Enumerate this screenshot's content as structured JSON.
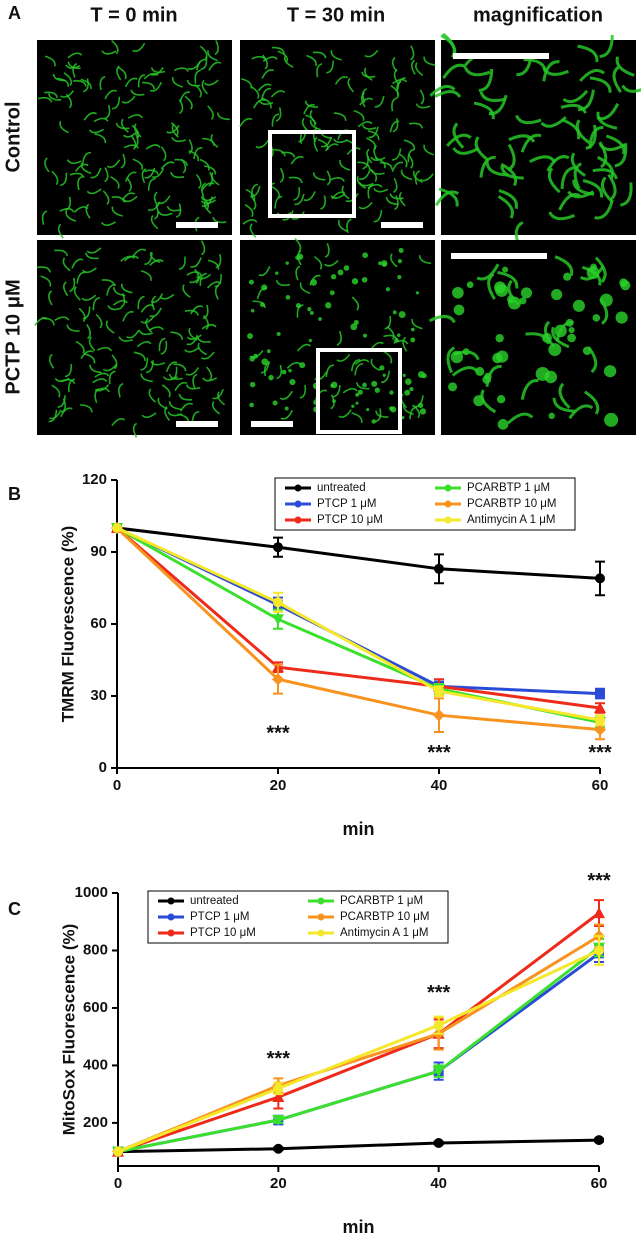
{
  "panel_a": {
    "label": "A",
    "columns": [
      "T = 0  min",
      "T = 30  min",
      "magnification"
    ],
    "rows": [
      "Control",
      "PCTP 10 μM"
    ]
  },
  "chart_data": [
    {
      "type": "line",
      "panel_label": "B",
      "ylabel": "TMRM Fluorescence (%)",
      "xlabel": "min",
      "x": [
        0,
        20,
        40,
        60
      ],
      "xlim": [
        0,
        60
      ],
      "xticks": [
        0,
        20,
        40,
        60
      ],
      "ylim": [
        0,
        120
      ],
      "yticks": [
        0,
        30,
        60,
        90,
        120
      ],
      "legend": "top-right",
      "series": [
        {
          "name": "untreated",
          "color": "#000000",
          "marker": "circle",
          "values": [
            100,
            92,
            83,
            79
          ],
          "errors": [
            0,
            4,
            6,
            7
          ]
        },
        {
          "name": "PTCP 1 μM",
          "color": "#2a4bd7",
          "marker": "square",
          "values": [
            100,
            68,
            34,
            31
          ],
          "errors": [
            0,
            3,
            2,
            2
          ]
        },
        {
          "name": "PTCP 10 μM",
          "color": "#ee2a1b",
          "marker": "triangle",
          "values": [
            100,
            42,
            34,
            25
          ],
          "errors": [
            0,
            2,
            3,
            2
          ]
        },
        {
          "name": "PCARBTP 1 μM",
          "color": "#3be02e",
          "marker": "down",
          "values": [
            100,
            62,
            33,
            19
          ],
          "errors": [
            0,
            4,
            2,
            2
          ]
        },
        {
          "name": "PCARBTP 10 μM",
          "color": "#f7931e",
          "marker": "diamond",
          "values": [
            100,
            37,
            22,
            16
          ],
          "errors": [
            0,
            6,
            7,
            4
          ]
        },
        {
          "name": "Antimycin A 1 μM",
          "color": "#f5e82a",
          "marker": "circle",
          "values": [
            100,
            69,
            32,
            20
          ],
          "errors": [
            0,
            4,
            2,
            2
          ]
        }
      ],
      "annotations": [
        {
          "text": "***",
          "x": 20,
          "y": 14
        },
        {
          "text": "***",
          "x": 40,
          "y": 6
        },
        {
          "text": "***",
          "x": 60,
          "y": 6
        }
      ]
    },
    {
      "type": "line",
      "panel_label": "C",
      "ylabel": "MitoSox Fluorescence (%)",
      "xlabel": "min",
      "x": [
        0,
        20,
        40,
        60
      ],
      "xlim": [
        0,
        60
      ],
      "xticks": [
        0,
        20,
        40,
        60
      ],
      "ylim": [
        50,
        1000
      ],
      "yticks": [
        200,
        400,
        600,
        800,
        1000
      ],
      "legend": "top-left",
      "series": [
        {
          "name": "untreated",
          "color": "#000000",
          "marker": "circle",
          "values": [
            100,
            110,
            130,
            140
          ],
          "errors": [
            0,
            5,
            5,
            5
          ]
        },
        {
          "name": "PTCP 1 μM",
          "color": "#2a4bd7",
          "marker": "square",
          "values": [
            100,
            210,
            380,
            790
          ],
          "errors": [
            0,
            15,
            30,
            30
          ]
        },
        {
          "name": "PTCP 10 μM",
          "color": "#ee2a1b",
          "marker": "triangle",
          "values": [
            100,
            290,
            510,
            930
          ],
          "errors": [
            0,
            40,
            50,
            45
          ]
        },
        {
          "name": "PCARBTP 1 μM",
          "color": "#3be02e",
          "marker": "down",
          "values": [
            100,
            210,
            380,
            810
          ],
          "errors": [
            0,
            10,
            20,
            30
          ]
        },
        {
          "name": "PCARBTP 10 μM",
          "color": "#f7931e",
          "marker": "diamond",
          "values": [
            100,
            330,
            510,
            850
          ],
          "errors": [
            0,
            25,
            55,
            40
          ]
        },
        {
          "name": "Antimycin A 1 μM",
          "color": "#f5e82a",
          "marker": "circle",
          "values": [
            100,
            320,
            540,
            800
          ],
          "errors": [
            0,
            20,
            30,
            50
          ]
        }
      ],
      "annotations": [
        {
          "text": "***",
          "x": 20,
          "y": 420
        },
        {
          "text": "***",
          "x": 40,
          "y": 650
        },
        {
          "text": "***",
          "x": 60,
          "y": 1040
        }
      ]
    }
  ]
}
